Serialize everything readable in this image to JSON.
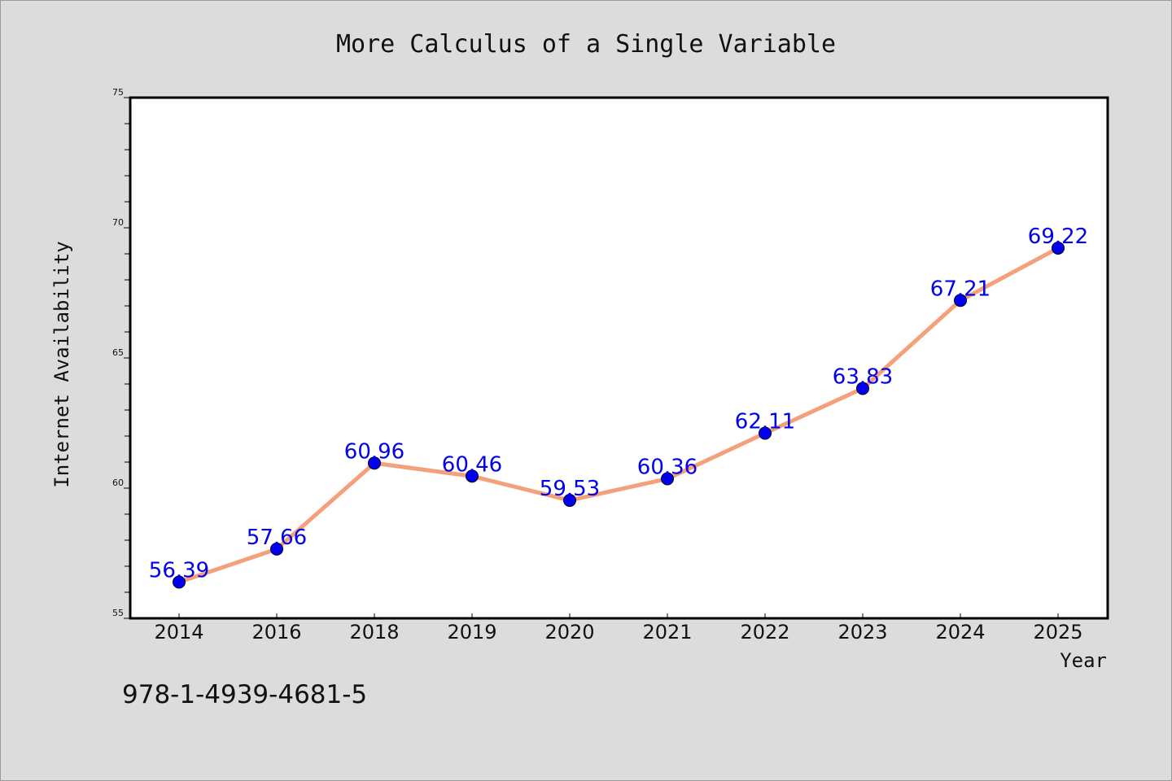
{
  "chart_data": {
    "type": "line",
    "title": "More Calculus of a Single Variable",
    "xlabel": "Year",
    "ylabel": "Internet Availability",
    "categories": [
      "2014",
      "2016",
      "2018",
      "2019",
      "2020",
      "2021",
      "2022",
      "2023",
      "2024",
      "2025"
    ],
    "series": [
      {
        "values": [
          56.39,
          57.66,
          60.96,
          60.46,
          59.53,
          60.36,
          62.11,
          63.83,
          67.21,
          69.22
        ]
      }
    ],
    "data_labels": [
      "56.39",
      "57.66",
      "60.96",
      "60.46",
      "59.53",
      "60.36",
      "62.11",
      "63.83",
      "67.21",
      "69.22"
    ],
    "ylim": [
      55,
      75
    ],
    "yticks": [
      "55",
      "60",
      "65",
      "70",
      "75"
    ],
    "grid": false,
    "legend": "none",
    "colors": {
      "line": "#f4a07a",
      "marker": "#0000ee",
      "label": "#0000ee",
      "background": "#dcdcdc",
      "plot_background": "#ffffff"
    }
  },
  "footer": {
    "isbn": "978-1-4939-4681-5"
  }
}
